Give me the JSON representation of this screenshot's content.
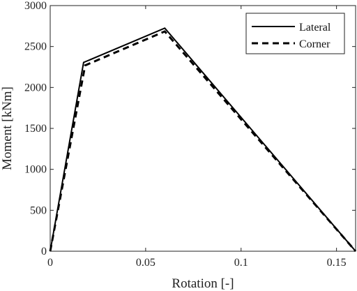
{
  "chart_data": {
    "type": "line",
    "title": "",
    "xlabel": "Rotation [-]",
    "ylabel": "Moment [kNm]",
    "xlim": [
      0,
      0.16
    ],
    "ylim": [
      0,
      3000
    ],
    "x_ticks": [
      0,
      0.05,
      0.1,
      0.15
    ],
    "x_tick_labels": [
      "0",
      "0.05",
      "0.1",
      "0.15"
    ],
    "y_ticks": [
      0,
      500,
      1000,
      1500,
      2000,
      2500,
      3000
    ],
    "y_tick_labels": [
      "0",
      "500",
      "1000",
      "1500",
      "2000",
      "2500",
      "3000"
    ],
    "grid": false,
    "legend_position": "top-right",
    "series": [
      {
        "name": "Lateral",
        "line_style": "solid",
        "color": "#000000",
        "x": [
          0,
          0.0175,
          0.06,
          0.16
        ],
        "y": [
          0,
          2305,
          2725,
          0
        ]
      },
      {
        "name": "Corner",
        "line_style": "dashed",
        "color": "#000000",
        "x": [
          0,
          0.0183,
          0.06,
          0.16
        ],
        "y": [
          0,
          2270,
          2685,
          0
        ]
      }
    ]
  }
}
